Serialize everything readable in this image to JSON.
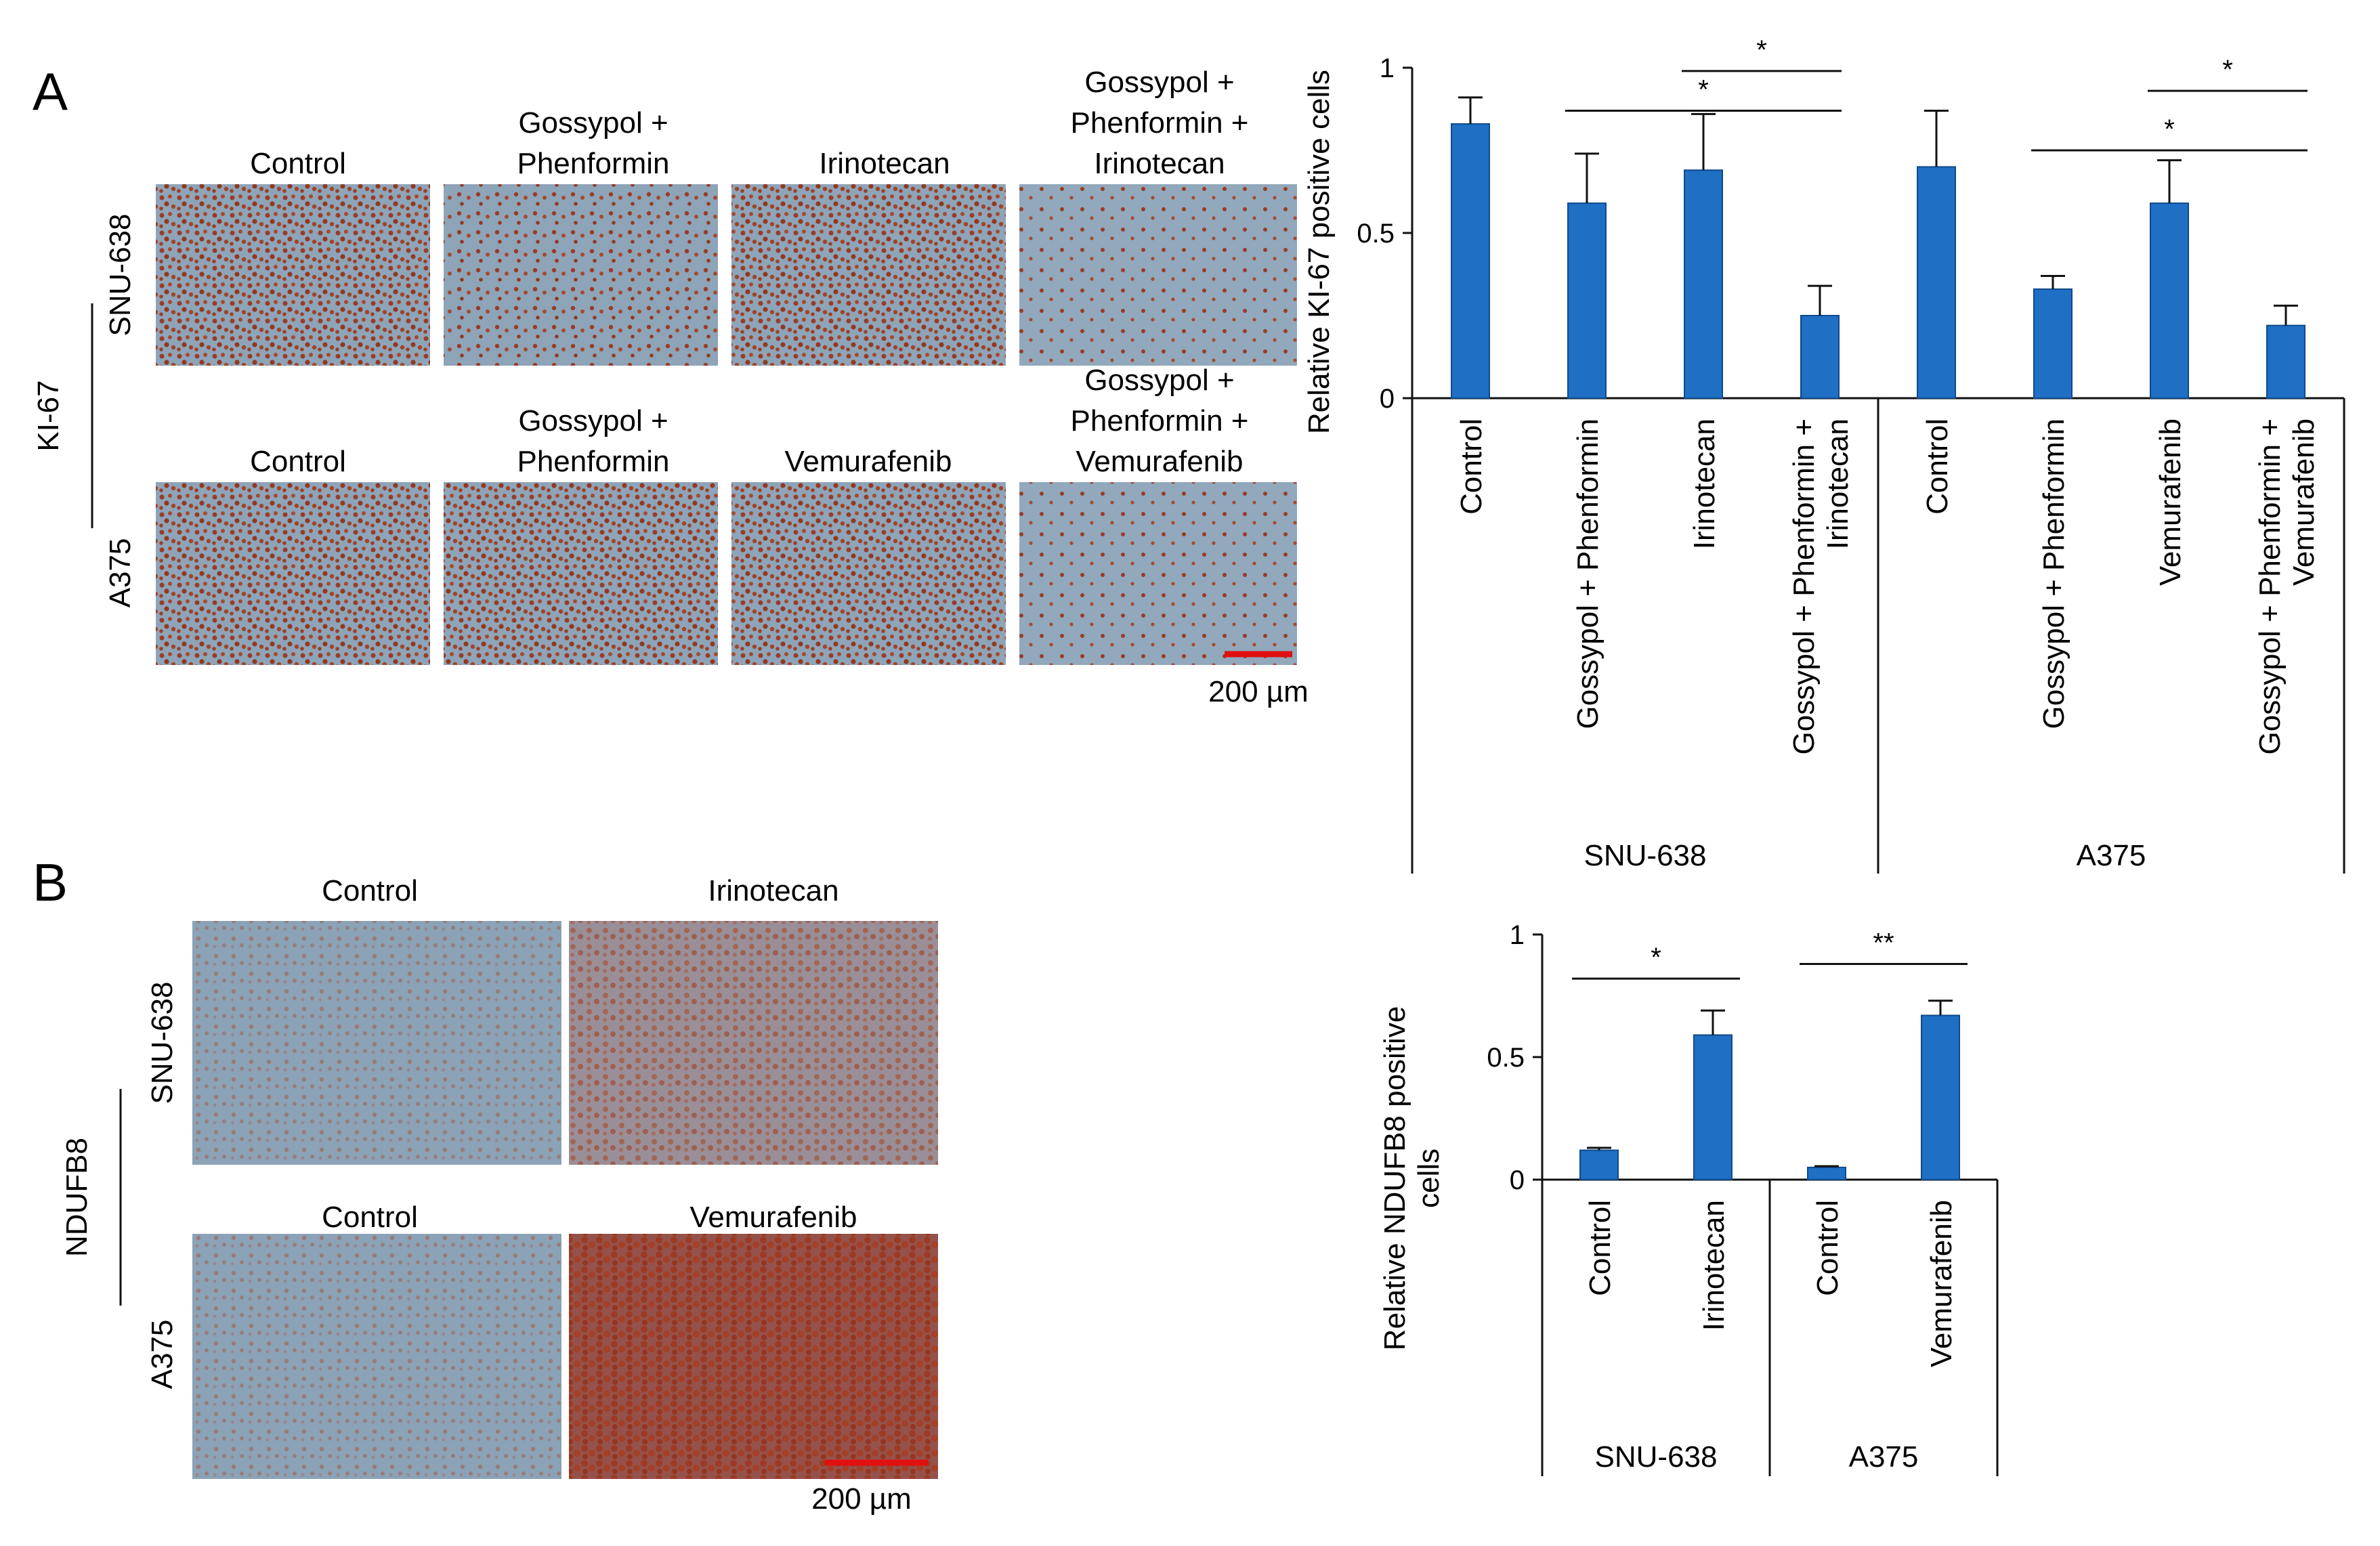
{
  "panelA": {
    "letter": "A",
    "marker": "KI-67",
    "rows": [
      {
        "cell_line": "SNU-638",
        "columns": [
          [
            "Control"
          ],
          [
            "Gossypol +",
            "Phenformin"
          ],
          [
            "Irinotecan"
          ],
          [
            "Gossypol +",
            "Phenformin +",
            "Irinotecan"
          ]
        ]
      },
      {
        "cell_line": "A375",
        "columns": [
          [
            "Control"
          ],
          [
            "Gossypol +",
            "Phenformin"
          ],
          [
            "Vemurafenib"
          ],
          [
            "Gossypol +",
            "Phenformin +",
            "Vemurafenib"
          ]
        ]
      }
    ],
    "scale_bar": "200 µm"
  },
  "panelB": {
    "letter": "B",
    "marker": "NDUFB8",
    "rows": [
      {
        "cell_line": "SNU-638",
        "columns": [
          [
            "Control"
          ],
          [
            "Irinotecan"
          ]
        ]
      },
      {
        "cell_line": "A375",
        "columns": [
          [
            "Control"
          ],
          [
            "Vemurafenib"
          ]
        ]
      }
    ],
    "scale_bar": "200 µm"
  },
  "colors": {
    "bar": "#1f6fc5",
    "bar_edge": "#0f4a8a",
    "scale_bar": "#e01010",
    "stain_bg": "#8aa1b6",
    "stain_dots": "#9a3b25"
  },
  "chart_data": [
    {
      "type": "bar",
      "ylabel": "Relative KI-67  positive cells",
      "ylim": [
        0,
        1
      ],
      "yticks": [
        "0",
        "0.5",
        "1"
      ],
      "categories": [
        [
          "Control"
        ],
        [
          "Gossypol + Phenformin"
        ],
        [
          "Irinotecan"
        ],
        [
          "Gossypol + Phenformin +",
          "Irinotecan"
        ],
        [
          "Control"
        ],
        [
          "Gossypol + Phenformin"
        ],
        [
          "Vemurafenib"
        ],
        [
          "Gossypol + Phenformin +",
          "Vemurafenib"
        ]
      ],
      "values": [
        0.83,
        0.59,
        0.69,
        0.25,
        0.7,
        0.33,
        0.59,
        0.22
      ],
      "errors": [
        0.08,
        0.15,
        0.17,
        0.09,
        0.17,
        0.04,
        0.13,
        0.06
      ],
      "groups": [
        {
          "label": "SNU-638",
          "start": 0,
          "end": 3
        },
        {
          "label": "A375",
          "start": 4,
          "end": 7
        }
      ],
      "significance": [
        {
          "from": 2,
          "to": 3,
          "label": "*",
          "level": 0.99
        },
        {
          "from": 1,
          "to": 3,
          "label": "*",
          "level": 0.87
        },
        {
          "from": 6,
          "to": 7,
          "label": "*",
          "level": 0.93
        },
        {
          "from": 5,
          "to": 7,
          "label": "*",
          "level": 0.75
        }
      ]
    },
    {
      "type": "bar",
      "ylabel": [
        "Relative NDUFB8  positive",
        "cells"
      ],
      "ylim": [
        0,
        1
      ],
      "yticks": [
        "0",
        "0.5",
        "1"
      ],
      "categories": [
        [
          "Control"
        ],
        [
          "Irinotecan"
        ],
        [
          "Control"
        ],
        [
          "Vemurafenib"
        ]
      ],
      "values": [
        0.12,
        0.59,
        0.05,
        0.67
      ],
      "errors": [
        0.01,
        0.1,
        0.005,
        0.06
      ],
      "groups": [
        {
          "label": "SNU-638",
          "start": 0,
          "end": 1
        },
        {
          "label": "A375",
          "start": 2,
          "end": 3
        }
      ],
      "significance": [
        {
          "from": 0,
          "to": 1,
          "label": "*",
          "level": 0.82
        },
        {
          "from": 2,
          "to": 3,
          "label": "**",
          "level": 0.88
        }
      ]
    }
  ]
}
